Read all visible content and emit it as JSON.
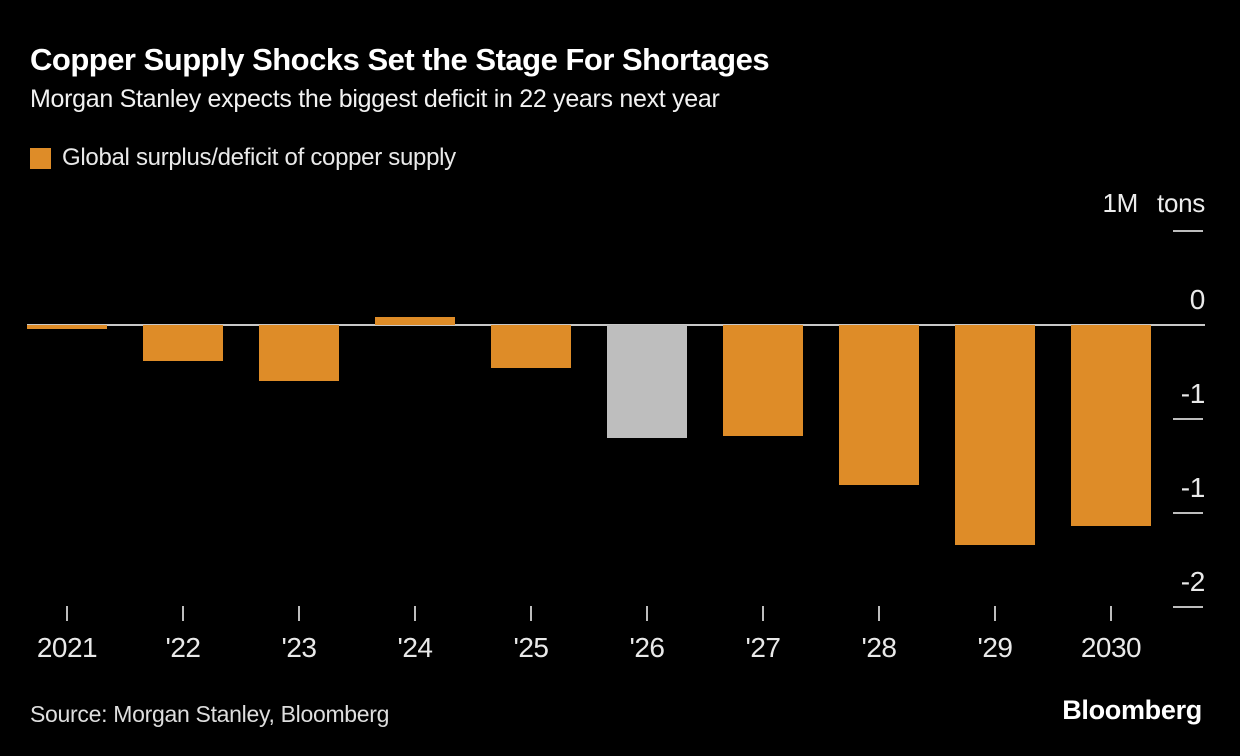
{
  "header": {
    "title": "Copper Supply Shocks Set the Stage For Shortages",
    "subtitle": "Morgan Stanley expects the biggest deficit in 22 years next year"
  },
  "footer": {
    "source": "Source: Morgan Stanley, Bloomberg",
    "brand": "Bloomberg"
  },
  "colors": {
    "background": "#000000",
    "bar_orange": "#de8c28",
    "bar_highlight_gray": "#bebebe",
    "axis_line": "#c8c8c8",
    "tick": "#bdbdbd",
    "text": "#e9e9e9"
  },
  "chart_data": {
    "type": "bar",
    "title": "Copper Supply Shocks Set the Stage For Shortages",
    "subtitle": "Morgan Stanley expects the biggest deficit in 22 years next year",
    "legend": [
      "Global surplus/deficit of copper supply"
    ],
    "legend_position": "top-left",
    "grid": false,
    "unit": "million tons",
    "categories": [
      "2021",
      "'22",
      "'23",
      "'24",
      "'25",
      "'26",
      "'27",
      "'28",
      "'29",
      "2030"
    ],
    "values": [
      -0.02,
      -0.19,
      -0.3,
      0.04,
      -0.23,
      -0.6,
      -0.59,
      -0.85,
      -1.17,
      -1.07
    ],
    "bar_color": "#de8c28",
    "highlight_index": 5,
    "highlight_color": "#bebebe",
    "ylim": [
      -1.6,
      0.6
    ],
    "top_axis_label": {
      "value": 0.5,
      "magnitude": "1M",
      "unit": "tons"
    },
    "ytick_dashes": [
      0.5,
      -0.5,
      -1.0,
      -1.5
    ],
    "ytick_labels": [
      {
        "value": 0,
        "label": "0"
      },
      {
        "value": -0.5,
        "label": "-1"
      },
      {
        "value": -1.0,
        "label": "-1"
      },
      {
        "value": -1.5,
        "label": "-2"
      }
    ]
  }
}
